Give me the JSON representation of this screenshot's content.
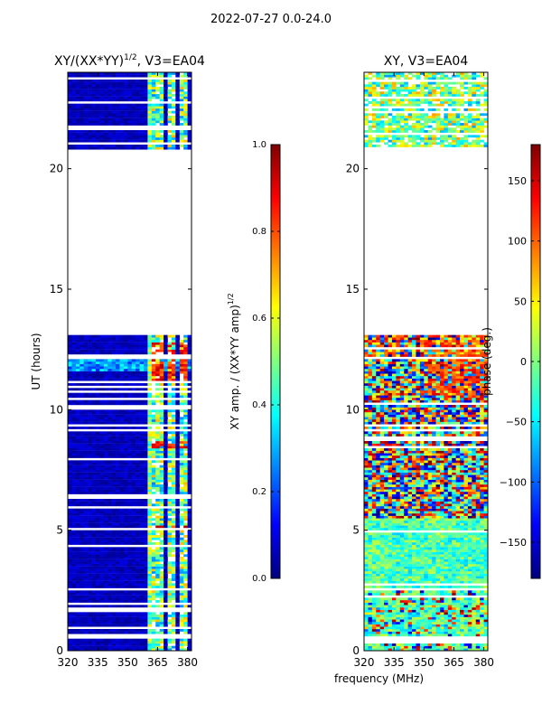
{
  "suptitle": "2022-07-27 0.0-24.0",
  "colors": {
    "jet": [
      "#00007f",
      "#0000ff",
      "#007fff",
      "#00ffff",
      "#7fff7f",
      "#ffff00",
      "#ff7f00",
      "#ff0000",
      "#7f0000"
    ]
  },
  "chart_data": [
    {
      "type": "heatmap",
      "title_main": "XY/(XX*YY)",
      "title_exp": "1/2",
      "title_tail": ", V3=EA04",
      "xlabel": "",
      "ylabel": "UT (hours)",
      "xlim": [
        320,
        382
      ],
      "ylim": [
        0,
        24
      ],
      "xticks": [
        320,
        335,
        350,
        365,
        380
      ],
      "yticks": [
        0,
        5,
        10,
        15,
        20
      ],
      "ytick_labels": [
        "0",
        "5",
        "10",
        "15",
        "20"
      ],
      "data_gap_hours": [
        13.1,
        20.8
      ],
      "colorbar": {
        "label_main": "XY amp. / (XX*YY amp)",
        "label_exp": "1/2",
        "vmin": 0.0,
        "vmax": 1.0,
        "ticks": [
          0.0,
          0.2,
          0.4,
          0.6,
          0.8,
          1.0
        ],
        "tick_labels": [
          "0.0",
          "0.2",
          "0.4",
          "0.6",
          "0.8",
          "1.0"
        ]
      }
    },
    {
      "type": "heatmap",
      "title_main": "XY, V3=EA04",
      "title_exp": "",
      "title_tail": "",
      "xlabel": "frequency (MHz)",
      "ylabel": "",
      "xlim": [
        320,
        382
      ],
      "ylim": [
        0,
        24
      ],
      "xticks": [
        320,
        335,
        350,
        365,
        380
      ],
      "yticks": [
        0,
        5,
        10,
        15,
        20
      ],
      "ytick_labels": [
        "0",
        "5",
        "10",
        "15",
        "20"
      ],
      "data_gap_hours": [
        13.1,
        20.8
      ],
      "colorbar": {
        "label_main": "phase (deg.)",
        "label_exp": "",
        "vmin": -180,
        "vmax": 180,
        "ticks": [
          -150,
          -100,
          -50,
          0,
          50,
          100,
          150
        ],
        "tick_labels": [
          "−150",
          "−100",
          "−50",
          "0",
          "50",
          "100",
          "150"
        ]
      }
    }
  ]
}
